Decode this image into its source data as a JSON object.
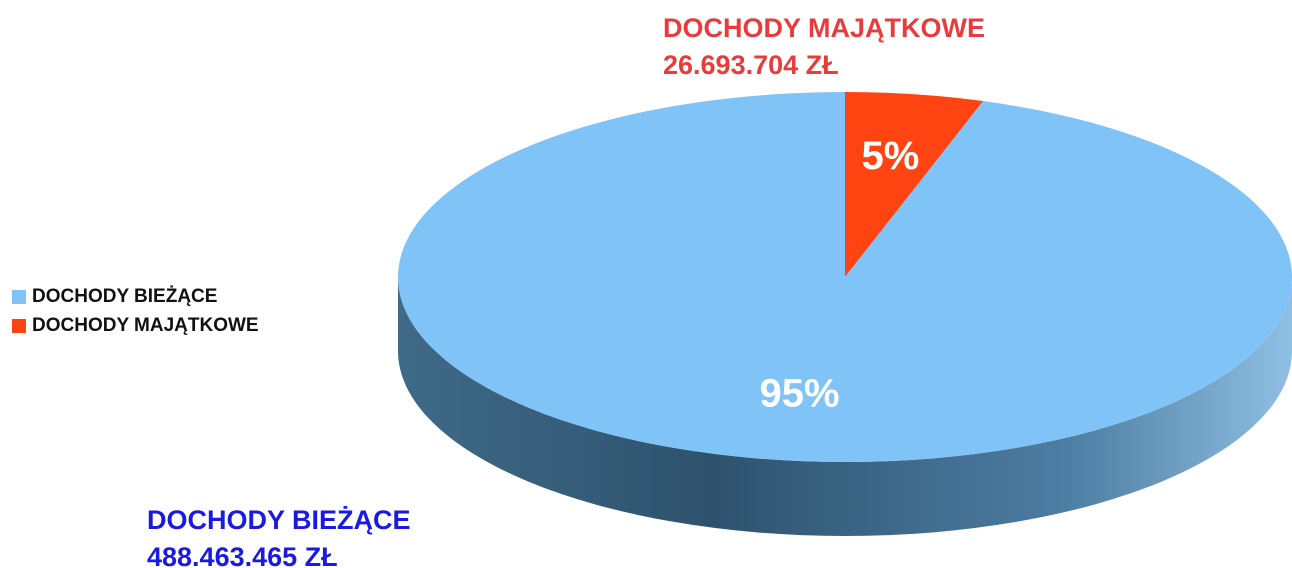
{
  "chart_data": {
    "type": "pie",
    "categories": [
      "DOCHODY BIEŻĄCE",
      "DOCHODY MAJĄTKOWE"
    ],
    "values": [
      95,
      5
    ],
    "value_labels": [
      "95%",
      "5%"
    ],
    "amount_labels": [
      "488.463.465 ZŁ",
      "26.693.704 ZŁ"
    ],
    "colors": [
      "#80c4f7",
      "#ff4411"
    ],
    "callout_colors": [
      "#1a1ae0",
      "#e83c3c"
    ],
    "legend": "left"
  }
}
